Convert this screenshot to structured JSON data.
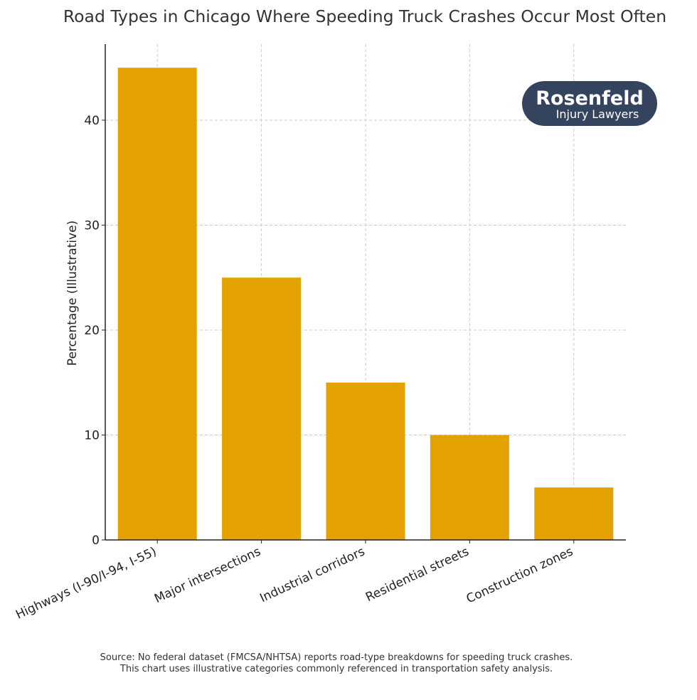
{
  "chart_data": {
    "type": "bar",
    "title": "Road Types in Chicago Where Speeding Truck Crashes Occur Most Often",
    "xlabel": "",
    "ylabel": "Percentage (Illustrative)",
    "categories": [
      "Highways (I-90/I-94, I-55)",
      "Major intersections",
      "Industrial corridors",
      "Residential streets",
      "Construction zones"
    ],
    "values": [
      45,
      25,
      15,
      10,
      5
    ],
    "ylim": [
      0,
      47.25
    ],
    "yticks": [
      0,
      10,
      20,
      30,
      40
    ],
    "grid": true,
    "bar_color": "#E3A200"
  },
  "logo": {
    "line1": "Rosenfeld",
    "line2": "Injury Lawyers",
    "color": "#34445E"
  },
  "footer": {
    "line1": "Source: No federal dataset (FMCSA/NHTSA) reports road-type breakdowns for speeding truck crashes.",
    "line2": "This chart uses illustrative categories commonly referenced in transportation safety analysis."
  }
}
